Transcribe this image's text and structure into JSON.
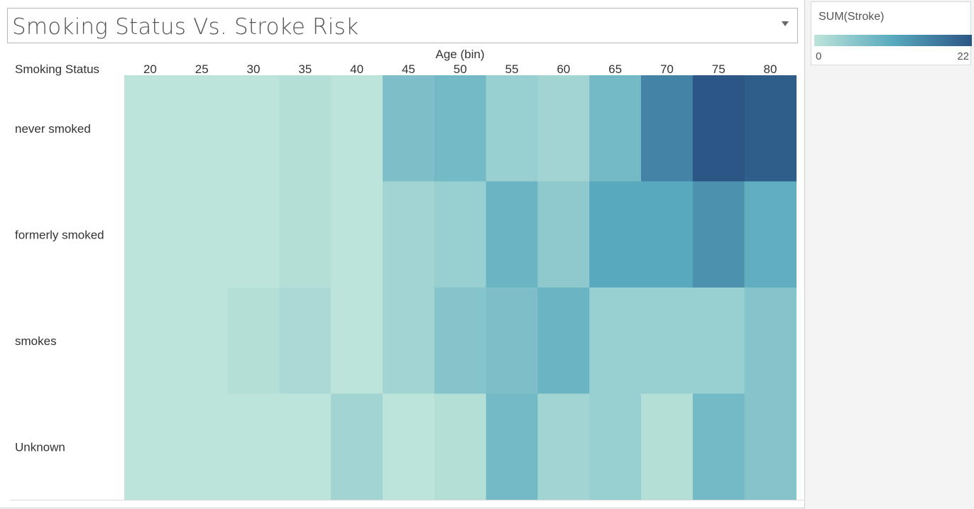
{
  "title": "Smoking Status Vs. Stroke Risk",
  "legend": {
    "title": "SUM(Stroke)",
    "min_label": "0",
    "max_label": "22",
    "color_low": "#bde4da",
    "color_high": "#2c5686"
  },
  "chart_data": {
    "type": "heatmap",
    "title": "Smoking Status Vs. Stroke Risk",
    "xlabel": "Age (bin)",
    "ylabel": "Smoking Status",
    "x": [
      "20",
      "25",
      "30",
      "35",
      "40",
      "45",
      "50",
      "55",
      "60",
      "65",
      "70",
      "75",
      "80"
    ],
    "y": [
      "never smoked",
      "formerly smoked",
      "smokes",
      "Unknown"
    ],
    "values": [
      [
        0,
        0,
        0,
        1,
        0,
        7,
        8,
        4,
        3,
        8,
        16,
        22,
        21
      ],
      [
        0,
        0,
        0,
        1,
        0,
        3,
        4,
        9,
        5,
        11,
        11,
        14,
        10
      ],
      [
        0,
        0,
        1,
        2,
        0,
        3,
        6,
        7,
        9,
        4,
        4,
        4,
        6
      ],
      [
        0,
        0,
        0,
        0,
        3,
        0,
        1,
        8,
        3,
        4,
        1,
        8,
        6
      ]
    ],
    "value_range": [
      0,
      22
    ],
    "grid": false,
    "legend_position": "right"
  }
}
